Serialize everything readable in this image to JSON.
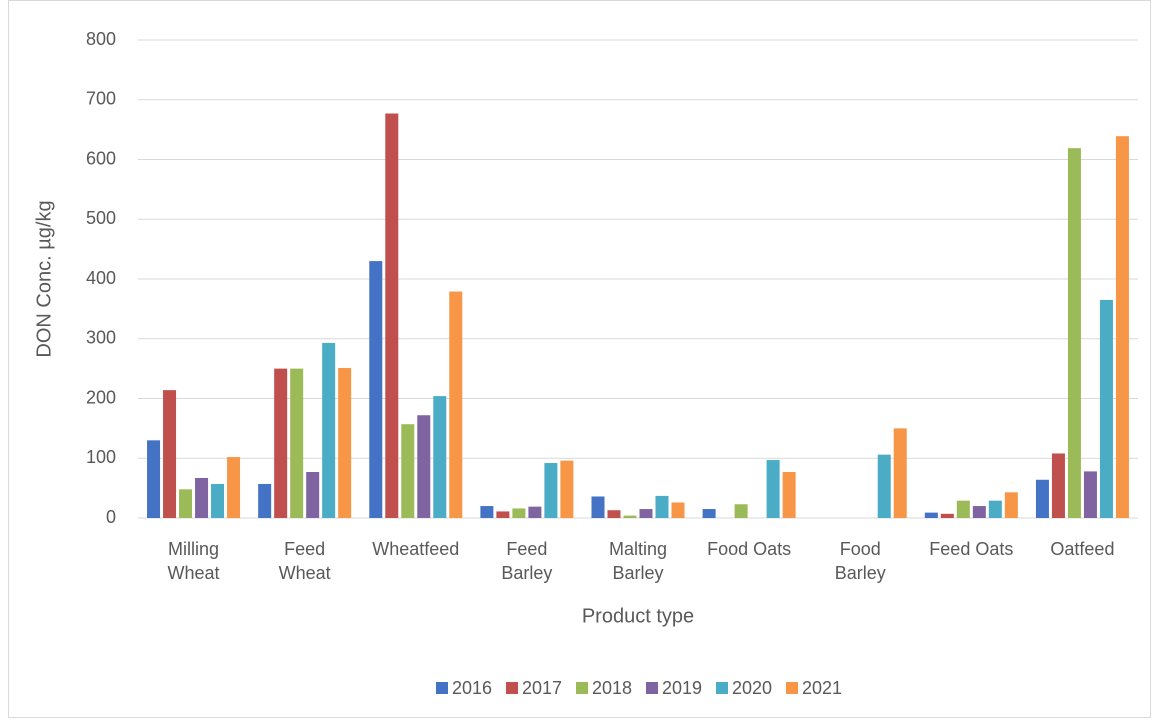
{
  "chart_data": {
    "type": "bar",
    "x_label": "Product type",
    "y_label": "DON Conc. µg/kg",
    "categories": [
      "Milling Wheat",
      "Feed Wheat",
      "Wheatfeed",
      "Feed Barley",
      "Malting Barley",
      "Food Oats",
      "Food Barley",
      "Feed Oats",
      "Oatfeed"
    ],
    "series": [
      {
        "name": "2016",
        "color": "#4472c4",
        "values": [
          130,
          57,
          430,
          20,
          36,
          15,
          null,
          9,
          64
        ]
      },
      {
        "name": "2017",
        "color": "#c0504d",
        "values": [
          214,
          250,
          677,
          11,
          13,
          null,
          null,
          7,
          108
        ]
      },
      {
        "name": "2018",
        "color": "#9bbb59",
        "values": [
          48,
          250,
          157,
          16,
          4,
          23,
          null,
          29,
          619
        ]
      },
      {
        "name": "2019",
        "color": "#8064a2",
        "values": [
          67,
          77,
          172,
          19,
          15,
          null,
          null,
          20,
          78
        ]
      },
      {
        "name": "2020",
        "color": "#4bacc6",
        "values": [
          57,
          293,
          204,
          92,
          37,
          97,
          106,
          29,
          365
        ]
      },
      {
        "name": "2021",
        "color": "#f79646",
        "values": [
          102,
          251,
          379,
          96,
          26,
          77,
          150,
          43,
          639
        ]
      }
    ],
    "ylim": [
      0,
      800
    ],
    "yticks": [
      0,
      100,
      200,
      300,
      400,
      500,
      600,
      700,
      800
    ],
    "grid": true,
    "legend": "bottom"
  }
}
